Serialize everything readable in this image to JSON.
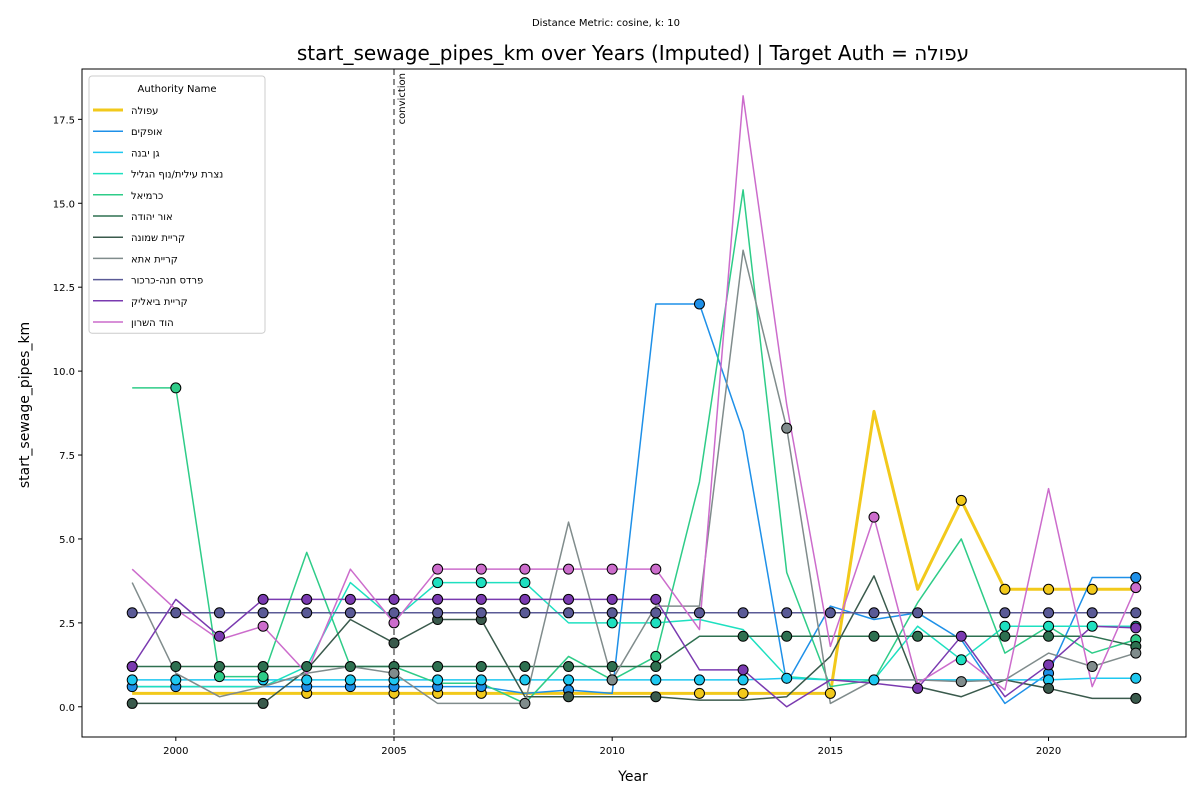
{
  "chart_data": {
    "type": "line",
    "suptitle": "Distance Metric: cosine, k: 10",
    "title": "start_sewage_pipes_km over Years (Imputed) | Target Auth = עפולה",
    "xlabel": "Year",
    "ylabel": "start_sewage_pipes_km",
    "xlim": [
      1997.85,
      2023.15
    ],
    "ylim": [
      -0.9,
      19.0
    ],
    "xticks": [
      2000,
      2005,
      2010,
      2015,
      2020
    ],
    "yticks": [
      0.0,
      2.5,
      5.0,
      7.5,
      10.0,
      12.5,
      15.0,
      17.5
    ],
    "grid": false,
    "legend": {
      "title": "Authority Name",
      "placement": "top-left"
    },
    "annotation": {
      "label": "conviction",
      "x": 2005
    },
    "x": [
      1999,
      2000,
      2001,
      2002,
      2003,
      2004,
      2005,
      2006,
      2007,
      2008,
      2009,
      2010,
      2011,
      2012,
      2013,
      2014,
      2015,
      2016,
      2017,
      2018,
      2019,
      2020,
      2021,
      2022
    ],
    "series": [
      {
        "name": "עפולה",
        "color": "#f2c91b",
        "width": 3,
        "values": [
          0.4,
          0.4,
          0.4,
          0.4,
          0.4,
          0.4,
          0.4,
          0.4,
          0.4,
          0.4,
          0.4,
          0.4,
          0.4,
          0.4,
          0.4,
          0.4,
          0.4,
          8.8,
          3.5,
          6.15,
          3.5,
          3.5,
          3.5,
          3.5
        ],
        "imputed": [
          2003,
          2005,
          2006,
          2007,
          2012,
          2013,
          2015,
          2018,
          2019,
          2020,
          2021
        ]
      },
      {
        "name": "אופקים",
        "color": "#1e90e8",
        "width": 1.5,
        "values": [
          0.6,
          0.6,
          0.6,
          0.6,
          0.6,
          0.6,
          0.6,
          0.6,
          0.6,
          0.4,
          0.5,
          0.4,
          12.0,
          12.0,
          8.2,
          0.7,
          3.0,
          2.6,
          2.8,
          2.0,
          0.1,
          1.0,
          3.85,
          3.85
        ],
        "imputed": [
          1999,
          2000,
          2003,
          2004,
          2005,
          2006,
          2007,
          2009,
          2012,
          2020,
          2022
        ]
      },
      {
        "name": "גן יבנה",
        "color": "#1ec8f0",
        "width": 1.5,
        "values": [
          0.8,
          0.8,
          0.8,
          0.8,
          0.8,
          0.8,
          0.8,
          0.8,
          0.8,
          0.8,
          0.8,
          0.8,
          0.8,
          0.8,
          0.8,
          0.85,
          0.8,
          0.8,
          0.8,
          0.8,
          0.8,
          0.8,
          0.85,
          0.85
        ],
        "imputed": [
          1999,
          2000,
          2002,
          2003,
          2004,
          2005,
          2006,
          2007,
          2008,
          2009,
          2010,
          2011,
          2012,
          2013,
          2014,
          2016,
          2020,
          2022
        ]
      },
      {
        "name": "נצרת עילית/נוף הגליל",
        "color": "#1ee0c0",
        "width": 1.5,
        "values": [
          0.6,
          0.6,
          0.6,
          0.6,
          1.2,
          3.7,
          2.6,
          3.7,
          3.7,
          3.7,
          2.5,
          2.5,
          2.5,
          2.6,
          2.3,
          0.9,
          0.8,
          0.8,
          2.4,
          1.4,
          2.4,
          2.4,
          2.4,
          2.4
        ],
        "imputed": [
          2006,
          2007,
          2008,
          2010,
          2011,
          2018,
          2019,
          2020,
          2021,
          2022
        ]
      },
      {
        "name": "כרמיאל",
        "color": "#2ecc88",
        "width": 1.5,
        "values": [
          9.5,
          9.5,
          0.9,
          0.9,
          4.6,
          1.2,
          1.2,
          0.7,
          0.7,
          0.1,
          1.5,
          0.8,
          1.5,
          6.7,
          15.4,
          4.0,
          0.6,
          0.8,
          3.1,
          5.0,
          1.6,
          2.4,
          1.6,
          2.0
        ],
        "imputed": [
          2000,
          2001,
          2002,
          2011,
          2022
        ]
      },
      {
        "name": "אור יהודה",
        "color": "#2e7050",
        "width": 1.5,
        "values": [
          1.2,
          1.2,
          1.2,
          1.2,
          1.2,
          1.2,
          1.2,
          1.2,
          1.2,
          1.2,
          1.2,
          1.2,
          1.2,
          2.1,
          2.1,
          2.1,
          2.1,
          2.1,
          2.1,
          2.1,
          2.1,
          2.1,
          2.1,
          1.8
        ],
        "imputed": [
          1999,
          2000,
          2001,
          2002,
          2003,
          2004,
          2005,
          2006,
          2007,
          2008,
          2009,
          2010,
          2011,
          2013,
          2014,
          2016,
          2017,
          2019,
          2020,
          2022
        ]
      },
      {
        "name": "קריית שמונה",
        "color": "#3a5a4c",
        "width": 1.5,
        "values": [
          0.1,
          0.1,
          0.1,
          0.1,
          1.1,
          2.6,
          1.9,
          2.6,
          2.6,
          0.3,
          0.3,
          0.3,
          0.3,
          0.2,
          0.2,
          0.3,
          1.5,
          3.9,
          0.6,
          0.3,
          0.8,
          0.55,
          0.25,
          0.25
        ],
        "imputed": [
          1999,
          2002,
          2005,
          2006,
          2007,
          2009,
          2011,
          2020,
          2022
        ]
      },
      {
        "name": "קריית אתא",
        "color": "#808c8c",
        "width": 1.5,
        "values": [
          3.7,
          1.0,
          0.3,
          0.6,
          1.0,
          1.2,
          1.0,
          0.1,
          0.1,
          0.1,
          5.5,
          0.8,
          3.0,
          3.0,
          13.6,
          8.3,
          0.1,
          0.8,
          0.8,
          0.75,
          0.8,
          1.6,
          1.2,
          1.6
        ],
        "imputed": [
          2005,
          2008,
          2010,
          2014,
          2018,
          2021,
          2022
        ]
      },
      {
        "name": "פרדס חנה-כרכור",
        "color": "#5a5a96",
        "width": 1.5,
        "values": [
          2.8,
          2.8,
          2.8,
          2.8,
          2.8,
          2.8,
          2.8,
          2.8,
          2.8,
          2.8,
          2.8,
          2.8,
          2.8,
          2.8,
          2.8,
          2.8,
          2.8,
          2.8,
          2.8,
          2.8,
          2.8,
          2.8,
          2.8,
          2.8
        ],
        "imputed": [
          1999,
          2000,
          2001,
          2002,
          2003,
          2004,
          2005,
          2006,
          2007,
          2008,
          2009,
          2010,
          2011,
          2012,
          2013,
          2014,
          2015,
          2016,
          2017,
          2019,
          2020,
          2021,
          2022
        ]
      },
      {
        "name": "קריית ביאליק",
        "color": "#7a3ab0",
        "width": 1.5,
        "values": [
          1.2,
          3.2,
          2.1,
          3.2,
          3.2,
          3.2,
          3.2,
          3.2,
          3.2,
          3.2,
          3.2,
          3.2,
          3.2,
          1.1,
          1.1,
          0.0,
          0.8,
          0.7,
          0.55,
          2.1,
          0.3,
          1.25,
          2.4,
          2.35
        ],
        "imputed": [
          1999,
          2001,
          2002,
          2003,
          2004,
          2005,
          2006,
          2007,
          2008,
          2009,
          2010,
          2011,
          2013,
          2017,
          2018,
          2020,
          2022
        ]
      },
      {
        "name": "הוד השרון",
        "color": "#cc6ccc",
        "width": 1.5,
        "values": [
          4.1,
          2.9,
          2.0,
          2.4,
          1.0,
          4.1,
          2.5,
          4.1,
          4.1,
          4.1,
          4.1,
          4.1,
          4.1,
          2.3,
          18.2,
          9.0,
          1.8,
          5.65,
          0.7,
          1.5,
          0.5,
          6.5,
          0.6,
          3.55
        ],
        "imputed": [
          2002,
          2005,
          2006,
          2007,
          2008,
          2009,
          2010,
          2011,
          2016,
          2022
        ]
      }
    ]
  }
}
